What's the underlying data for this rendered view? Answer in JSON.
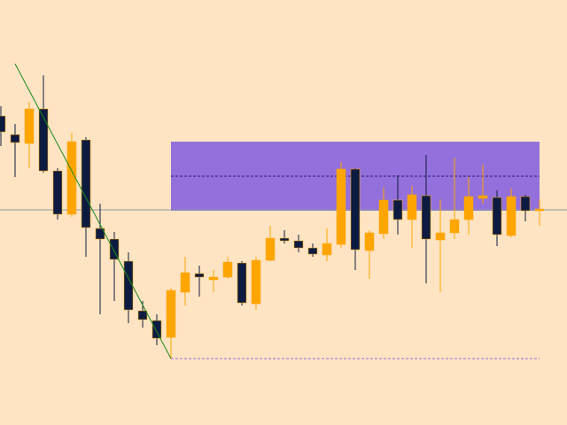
{
  "chart_data": {
    "type": "candlestick",
    "ylim": [
      0,
      480
    ],
    "up_color": "#ffa500",
    "down_color": "#0d1b40",
    "background": "#ffe4c4",
    "open": [
      349,
      328,
      318,
      357,
      287,
      238,
      322,
      222,
      210,
      185,
      129,
      118,
      99,
      150,
      171,
      164,
      167,
      183,
      137,
      186,
      211,
      208,
      200,
      192,
      204,
      289,
      197,
      216,
      254,
      232,
      259,
      209,
      217,
      232,
      256,
      257,
      214,
      258,
      242
    ],
    "high": [
      360,
      340,
      365,
      395,
      290,
      330,
      325,
      250,
      218,
      195,
      140,
      125,
      155,
      190,
      180,
      175,
      190,
      185,
      190,
      225,
      220,
      215,
      205,
      222,
      297,
      290,
      220,
      268,
      282,
      270,
      305,
      255,
      302,
      280,
      294,
      265,
      267,
      260,
      255
    ],
    "low": [
      315,
      280,
      290,
      285,
      232,
      235,
      190,
      125,
      140,
      115,
      110,
      90,
      75,
      135,
      145,
      150,
      165,
      135,
      130,
      185,
      205,
      195,
      190,
      185,
      200,
      175,
      165,
      210,
      215,
      200,
      160,
      150,
      210,
      215,
      250,
      202,
      212,
      230,
      225
    ],
    "close": [
      331,
      319,
      357,
      287,
      238,
      320,
      223,
      210,
      187,
      130,
      119,
      98,
      152,
      172,
      167,
      167,
      184,
      138,
      186,
      211,
      208,
      200,
      193,
      205,
      289,
      198,
      217,
      254,
      232,
      260,
      210,
      217,
      232,
      258,
      259,
      215,
      258,
      242,
      244
    ],
    "zone": {
      "top": 320,
      "bottom": 242,
      "mid": 281,
      "from": 12,
      "to": 38,
      "color": "#9370db"
    },
    "level": 243,
    "trendline": {
      "from": [
        1,
        408
      ],
      "to": [
        12,
        75
      ],
      "color": "#1a8a1a"
    },
    "low_line": {
      "value": 75,
      "from": 12,
      "to": 38,
      "color": "#9370db"
    }
  }
}
